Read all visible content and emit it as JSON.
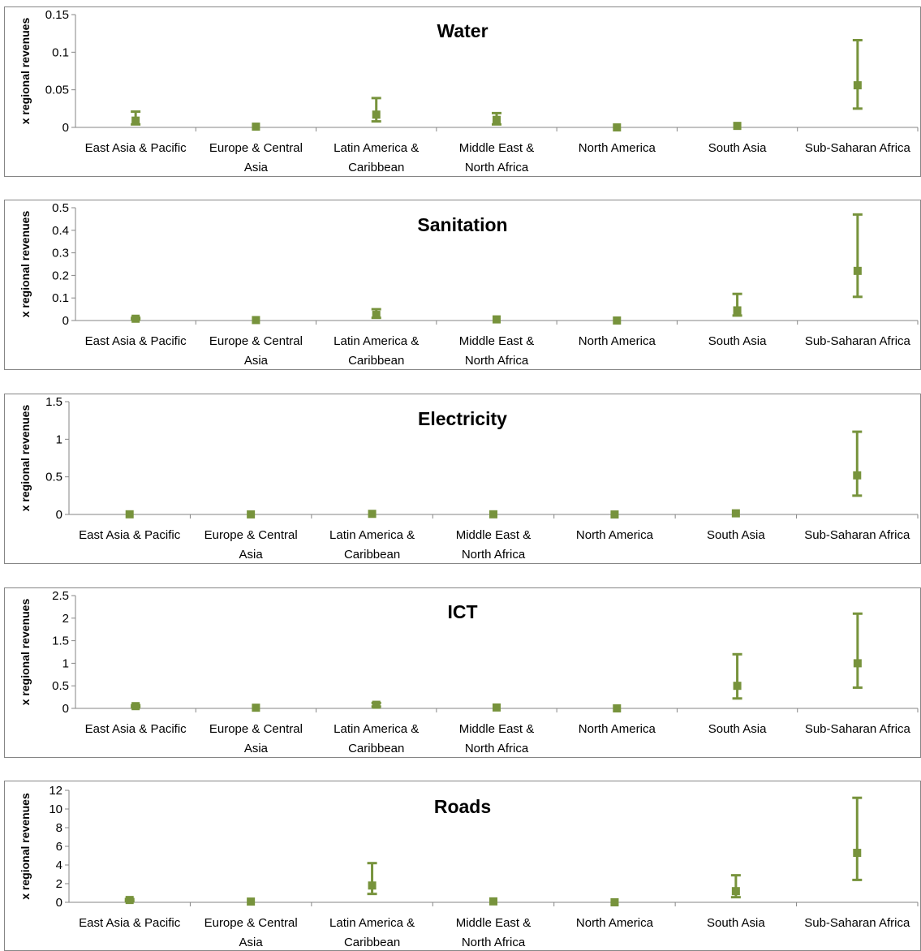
{
  "colors": {
    "series": "#77933c",
    "axis": "#868686",
    "frame": "#868686"
  },
  "chart_data": [
    {
      "type": "scatter",
      "title": "Water",
      "ylabel": "x regional revenues",
      "categories": [
        "East Asia & Pacific",
        "Europe & Central Asia",
        "Latin America & Caribbean",
        "Middle East & North Africa",
        "North America",
        "South Asia",
        "Sub-Saharan Africa"
      ],
      "values": [
        0.009,
        0.001,
        0.017,
        0.01,
        0.0,
        0.002,
        0.056
      ],
      "err_low": [
        0.004,
        0.0005,
        0.008,
        0.004,
        0.0,
        0.001,
        0.025
      ],
      "err_high": [
        0.021,
        0.002,
        0.039,
        0.019,
        0.0,
        0.003,
        0.116
      ],
      "ylim": [
        0,
        0.15
      ],
      "yticks": [
        0,
        0.05,
        0.1,
        0.15
      ],
      "yticklabels": [
        "0",
        "0.05",
        "0.1",
        "0.15"
      ],
      "grid": false
    },
    {
      "type": "scatter",
      "title": "Sanitation",
      "ylabel": "x regional revenues",
      "categories": [
        "East Asia & Pacific",
        "Europe & Central Asia",
        "Latin America & Caribbean",
        "Middle East & North Africa",
        "North America",
        "South Asia",
        "Sub-Saharan Africa"
      ],
      "values": [
        0.008,
        0.002,
        0.025,
        0.005,
        0.0,
        0.045,
        0.22
      ],
      "err_low": [
        0.004,
        0.001,
        0.012,
        0.002,
        0.0,
        0.022,
        0.105
      ],
      "err_high": [
        0.012,
        0.003,
        0.05,
        0.008,
        0.0,
        0.118,
        0.47
      ],
      "ylim": [
        0,
        0.5
      ],
      "yticks": [
        0,
        0.1,
        0.2,
        0.3,
        0.4,
        0.5
      ],
      "yticklabels": [
        "0",
        "0.1",
        "0.2",
        "0.3",
        "0.4",
        "0.5"
      ],
      "grid": false
    },
    {
      "type": "scatter",
      "title": "Electricity",
      "ylabel": "x regional revenues",
      "categories": [
        "East Asia & Pacific",
        "Europe & Central Asia",
        "Latin America & Caribbean",
        "Middle East & North Africa",
        "North America",
        "South Asia",
        "Sub-Saharan Africa"
      ],
      "values": [
        0.002,
        0.001,
        0.008,
        0.002,
        0.0,
        0.015,
        0.52
      ],
      "err_low": [
        0.001,
        0.0005,
        0.004,
        0.001,
        0.0,
        0.007,
        0.25
      ],
      "err_high": [
        0.003,
        0.002,
        0.012,
        0.003,
        0.0,
        0.025,
        1.1
      ],
      "ylim": [
        0,
        1.5
      ],
      "yticks": [
        0,
        0.5,
        1,
        1.5
      ],
      "yticklabels": [
        "0",
        "0.5",
        "1",
        "1.5"
      ],
      "grid": false
    },
    {
      "type": "scatter",
      "title": "ICT",
      "ylabel": "x regional revenues",
      "categories": [
        "East Asia & Pacific",
        "Europe & Central Asia",
        "Latin America & Caribbean",
        "Middle East & North Africa",
        "North America",
        "South Asia",
        "Sub-Saharan Africa"
      ],
      "values": [
        0.05,
        0.015,
        0.08,
        0.02,
        0.0,
        0.5,
        1.0
      ],
      "err_low": [
        0.025,
        0.007,
        0.04,
        0.01,
        0.0,
        0.22,
        0.46
      ],
      "err_high": [
        0.07,
        0.025,
        0.12,
        0.03,
        0.0,
        1.2,
        2.1
      ],
      "ylim": [
        0,
        2.5
      ],
      "yticks": [
        0,
        0.5,
        1,
        1.5,
        2,
        2.5
      ],
      "yticklabels": [
        "0",
        "0.5",
        "1",
        "1.5",
        "2",
        "2.5"
      ],
      "grid": false
    },
    {
      "type": "scatter",
      "title": "Roads",
      "ylabel": "x regional revenues",
      "categories": [
        "East Asia & Pacific",
        "Europe & Central Asia",
        "Latin America & Caribbean",
        "Middle East & North Africa",
        "North America",
        "South Asia",
        "Sub-Saharan Africa"
      ],
      "values": [
        0.25,
        0.08,
        1.8,
        0.1,
        0.0,
        1.2,
        5.3
      ],
      "err_low": [
        0.12,
        0.04,
        0.9,
        0.05,
        0.0,
        0.55,
        2.4
      ],
      "err_high": [
        0.35,
        0.12,
        4.2,
        0.15,
        0.0,
        2.9,
        11.2
      ],
      "ylim": [
        0,
        12
      ],
      "yticks": [
        0,
        2,
        4,
        6,
        8,
        10,
        12
      ],
      "yticklabels": [
        "0",
        "2",
        "4",
        "6",
        "8",
        "10",
        "12"
      ],
      "grid": false
    }
  ]
}
